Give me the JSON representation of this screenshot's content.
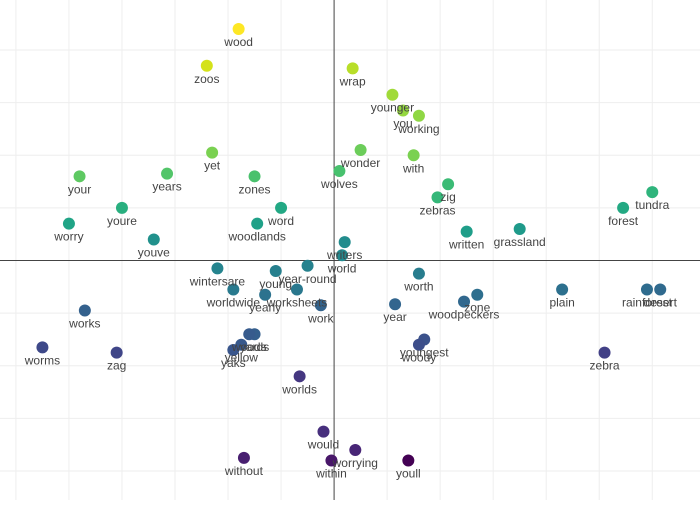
{
  "chart_data": {
    "type": "scatter",
    "title": "",
    "xlabel": "",
    "ylabel": "",
    "grid": true,
    "legend": "none",
    "xlim": [
      -6.3,
      6.9
    ],
    "ylim": [
      -4.55,
      4.95
    ],
    "axis_color": "#444444",
    "grid_color": "#eeeeee",
    "label_color": "#444444",
    "colormap": "viridis",
    "points": [
      {
        "label": "wood",
        "x": -1.8,
        "y": 4.4,
        "color": "#fde725"
      },
      {
        "label": "zoos",
        "x": -2.4,
        "y": 3.7,
        "color": "#d4e21a"
      },
      {
        "label": "wrap",
        "x": 0.35,
        "y": 3.65,
        "color": "#b8de29"
      },
      {
        "label": "younger",
        "x": 1.1,
        "y": 3.15,
        "color": "#a0da39"
      },
      {
        "label": "you",
        "x": 1.3,
        "y": 2.85,
        "color": "#95d840"
      },
      {
        "label": "working",
        "x": 1.6,
        "y": 2.75,
        "color": "#8fd744"
      },
      {
        "label": "yet",
        "x": -2.3,
        "y": 2.05,
        "color": "#7ad151"
      },
      {
        "label": "wonder",
        "x": 0.5,
        "y": 2.1,
        "color": "#6ccd5a"
      },
      {
        "label": "with",
        "x": 1.5,
        "y": 2.0,
        "color": "#7ad151"
      },
      {
        "label": "your",
        "x": -4.8,
        "y": 1.6,
        "color": "#5ec962"
      },
      {
        "label": "years",
        "x": -3.15,
        "y": 1.65,
        "color": "#52c569"
      },
      {
        "label": "zones",
        "x": -1.5,
        "y": 1.6,
        "color": "#4ac16d"
      },
      {
        "label": "wolves",
        "x": 0.1,
        "y": 1.7,
        "color": "#48c16e"
      },
      {
        "label": "zig",
        "x": 2.15,
        "y": 1.45,
        "color": "#3bbb75"
      },
      {
        "label": "zebras",
        "x": 1.95,
        "y": 1.2,
        "color": "#35b779"
      },
      {
        "label": "tundra",
        "x": 6.0,
        "y": 1.3,
        "color": "#2fb47c"
      },
      {
        "label": "youre",
        "x": -4.0,
        "y": 1.0,
        "color": "#29af7f"
      },
      {
        "label": "word",
        "x": -1.0,
        "y": 1.0,
        "color": "#22a884"
      },
      {
        "label": "forest",
        "x": 5.45,
        "y": 1.0,
        "color": "#23a983"
      },
      {
        "label": "worry",
        "x": -5.0,
        "y": 0.7,
        "color": "#20a486"
      },
      {
        "label": "woodlands",
        "x": -1.45,
        "y": 0.7,
        "color": "#1fa188"
      },
      {
        "label": "written",
        "x": 2.5,
        "y": 0.55,
        "color": "#1f9e89"
      },
      {
        "label": "grassland",
        "x": 3.5,
        "y": 0.6,
        "color": "#1f9a8a"
      },
      {
        "label": "youve",
        "x": -3.4,
        "y": 0.4,
        "color": "#21918c"
      },
      {
        "label": "writers",
        "x": 0.2,
        "y": 0.35,
        "color": "#228c8d"
      },
      {
        "label": "world",
        "x": 0.15,
        "y": 0.1,
        "color": "#23898e"
      },
      {
        "label": "wintersare",
        "x": -2.2,
        "y": -0.15,
        "color": "#25848e"
      },
      {
        "label": "year-round",
        "x": -0.5,
        "y": -0.1,
        "color": "#26828e"
      },
      {
        "label": "young",
        "x": -1.1,
        "y": -0.2,
        "color": "#27808e"
      },
      {
        "label": "worth",
        "x": 1.6,
        "y": -0.25,
        "color": "#287d8e"
      },
      {
        "label": "worldwide",
        "x": -1.9,
        "y": -0.55,
        "color": "#297a8e"
      },
      {
        "label": "worksheets",
        "x": -0.7,
        "y": -0.55,
        "color": "#2a788e"
      },
      {
        "label": "yearly",
        "x": -1.3,
        "y": -0.65,
        "color": "#2c728e"
      },
      {
        "label": "plain",
        "x": 4.3,
        "y": -0.55,
        "color": "#2d708e"
      },
      {
        "label": "zone",
        "x": 2.7,
        "y": -0.65,
        "color": "#2e6f8e"
      },
      {
        "label": "rainforest",
        "x": 5.9,
        "y": -0.55,
        "color": "#2f6c8e"
      },
      {
        "label": "desert",
        "x": 6.15,
        "y": -0.55,
        "color": "#306a8e"
      },
      {
        "label": "woodpeckers",
        "x": 2.45,
        "y": -0.78,
        "color": "#31688e"
      },
      {
        "label": "year",
        "x": 1.15,
        "y": -0.83,
        "color": "#32658e"
      },
      {
        "label": "work",
        "x": -0.25,
        "y": -0.85,
        "color": "#33638d"
      },
      {
        "label": "works",
        "x": -4.7,
        "y": -0.95,
        "color": "#34618d"
      },
      {
        "label": "yards",
        "x": -1.5,
        "y": -1.4,
        "color": "#355f8d"
      },
      {
        "label": "woods",
        "x": -1.6,
        "y": -1.4,
        "color": "#375b8d"
      },
      {
        "label": "yellow",
        "x": -1.75,
        "y": -1.6,
        "color": "#38598c"
      },
      {
        "label": "yaks",
        "x": -1.9,
        "y": -1.7,
        "color": "#39568c"
      },
      {
        "label": "youngest",
        "x": 1.7,
        "y": -1.5,
        "color": "#3b528b"
      },
      {
        "label": "woody",
        "x": 1.6,
        "y": -1.6,
        "color": "#3d4e8a"
      },
      {
        "label": "worms",
        "x": -5.5,
        "y": -1.65,
        "color": "#3e4989"
      },
      {
        "label": "zag",
        "x": -4.1,
        "y": -1.75,
        "color": "#404688"
      },
      {
        "label": "zebra",
        "x": 5.1,
        "y": -1.75,
        "color": "#424086"
      },
      {
        "label": "worlds",
        "x": -0.65,
        "y": -2.2,
        "color": "#453781"
      },
      {
        "label": "would",
        "x": -0.2,
        "y": -3.25,
        "color": "#472f7d"
      },
      {
        "label": "worrying",
        "x": 0.4,
        "y": -3.6,
        "color": "#482576"
      },
      {
        "label": "without",
        "x": -1.7,
        "y": -3.75,
        "color": "#481f70"
      },
      {
        "label": "within",
        "x": -0.05,
        "y": -3.8,
        "color": "#481769"
      },
      {
        "label": "youll",
        "x": 1.4,
        "y": -3.8,
        "color": "#440154"
      }
    ]
  }
}
